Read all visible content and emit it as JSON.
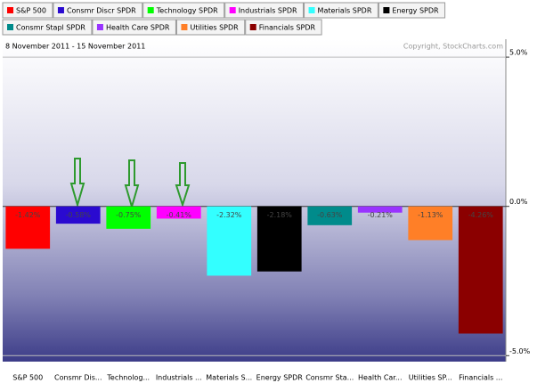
{
  "chart_data": {
    "type": "bar",
    "date_range": "8 November 2011 - 15 November 2011",
    "copyright": "Copyright, StockCharts.com",
    "legend_labels": [
      "S&P 500",
      "Consmr Discr SPDR",
      "Technology SPDR",
      "Industrials SPDR",
      "Materials SPDR",
      "Energy SPDR",
      "Consmr Stapl SPDR",
      "Health Care SPDR",
      "Utilities SPDR",
      "Financials SPDR"
    ],
    "categories": [
      "S&P 500",
      "Consmr Dis...",
      "Technolog...",
      "Industrials ...",
      "Materials S...",
      "Energy SPDR",
      "Consmr Sta...",
      "Health Car...",
      "Utilities SP...",
      "Financials ..."
    ],
    "values": [
      -1.42,
      -0.58,
      -0.75,
      -0.41,
      -2.32,
      -2.18,
      -0.63,
      -0.21,
      -1.13,
      -4.26
    ],
    "value_labels": [
      "-1.42%",
      "-0.58%",
      "-0.75%",
      "-0.41%",
      "-2.32%",
      "-2.18%",
      "-0.63%",
      "-0.21%",
      "-1.13%",
      "-4.26%"
    ],
    "colors": [
      "#ff0000",
      "#2a0ad0",
      "#00ff00",
      "#ff00ff",
      "#33ffff",
      "#000000",
      "#008b8b",
      "#9933ff",
      "#ff7f27",
      "#8b0000"
    ],
    "ylim": [
      -5.2,
      5.6
    ],
    "yticks": [
      {
        "value": 5,
        "label": "5.0%"
      },
      {
        "value": 0,
        "label": "0.0%"
      },
      {
        "value": -5,
        "label": "-5.0%"
      }
    ]
  }
}
